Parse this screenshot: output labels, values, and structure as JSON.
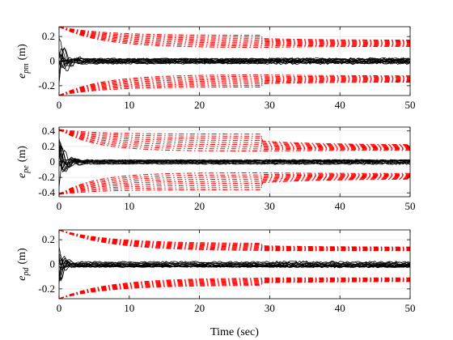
{
  "chart_data": [
    {
      "type": "line",
      "ylabel_var": "e",
      "ylabel_sub": "pm",
      "ylabel_unit": "(m)",
      "xlim": [
        0,
        50
      ],
      "ylim": [
        -0.28,
        0.28
      ],
      "xticks": [
        0,
        10,
        20,
        30,
        40,
        50
      ],
      "xticklabels": [
        "0",
        "10",
        "20",
        "30",
        "40",
        "50"
      ],
      "yticks": [
        -0.2,
        0,
        0.2
      ],
      "yticklabels": [
        "-0.2",
        "0",
        "0.2"
      ],
      "grid": true,
      "switch_time": 29,
      "series": [
        {
          "role": "error",
          "color": "#000000",
          "envelope": "inner",
          "level": 0.02,
          "decay": 1.2,
          "spread": 0.04
        },
        {
          "role": "bound",
          "color": "#ff0000",
          "initial": 0.28,
          "final": [
            0.11,
            0.21
          ],
          "decay": 6,
          "after_switch": [
            0.12,
            0.17
          ]
        }
      ]
    },
    {
      "type": "line",
      "ylabel_var": "e",
      "ylabel_sub": "pe",
      "ylabel_unit": "(m)",
      "xlim": [
        0,
        50
      ],
      "ylim": [
        -0.45,
        0.45
      ],
      "xticks": [
        0,
        10,
        20,
        30,
        40,
        50
      ],
      "xticklabels": [
        "0",
        "10",
        "20",
        "30",
        "40",
        "50"
      ],
      "yticks": [
        -0.4,
        -0.2,
        0,
        0.2,
        0.4
      ],
      "yticklabels": [
        "-0.4",
        "-0.2",
        "0",
        "0.2",
        "0.4"
      ],
      "grid": true,
      "switch_time": 29,
      "series": [
        {
          "role": "error",
          "color": "#000000",
          "envelope": "inner",
          "level": 0.02,
          "decay": 1.0,
          "spread": 0.05
        },
        {
          "role": "bound",
          "color": "#ff0000",
          "initial": 0.42,
          "final": [
            0.14,
            0.36
          ],
          "decay": 5,
          "after_switch": [
            0.15,
            0.22
          ]
        }
      ]
    },
    {
      "type": "line",
      "ylabel_var": "e",
      "ylabel_sub": "pd",
      "ylabel_unit": "(m)",
      "xlim": [
        0,
        50
      ],
      "ylim": [
        -0.28,
        0.28
      ],
      "xticks": [
        0,
        10,
        20,
        30,
        40,
        50
      ],
      "xticklabels": [
        "0",
        "10",
        "20",
        "30",
        "40",
        "50"
      ],
      "yticks": [
        -0.2,
        0,
        0.2
      ],
      "yticklabels": [
        "-0.2",
        "0",
        "0.2"
      ],
      "grid": true,
      "switch_time": 29,
      "xlabel": "Time (sec)",
      "series": [
        {
          "role": "error",
          "color": "#000000",
          "envelope": "inner",
          "level": 0.02,
          "decay": 0.8,
          "spread": 0.04
        },
        {
          "role": "bound",
          "color": "#ff0000",
          "initial": 0.28,
          "final": [
            0.11,
            0.17
          ],
          "decay": 7,
          "after_switch": [
            0.11,
            0.14
          ]
        }
      ]
    }
  ]
}
